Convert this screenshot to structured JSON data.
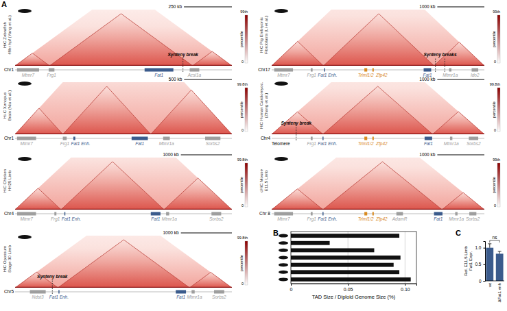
{
  "panel_labels": [
    "A",
    "B",
    "C"
  ],
  "hic_colorbar_unit": "percentile",
  "hic_panels": [
    {
      "title": [
        "HiC Zebrafish",
        "48hr hpf (Yang et al.)"
      ],
      "chrom": "Chr1",
      "kb_range": [
        0,
        1130
      ],
      "scale_kb": 250,
      "scale_label": "250 kb",
      "cbar_max": "99th",
      "cbar_min": 0,
      "tads": [
        [
          0,
          180
        ],
        [
          180,
          925
        ],
        [
          925,
          1130
        ]
      ],
      "genes": [
        {
          "name": "Mtmr7",
          "start": 10,
          "end": 125,
          "color": "#9e9e9e"
        },
        {
          "name": "Frg1",
          "start": 175,
          "end": 205,
          "color": "#9e9e9e"
        },
        {
          "name": "Fat1",
          "start": 675,
          "end": 825,
          "color": "#3b5b8c"
        },
        {
          "name": "Acsl1a",
          "start": 910,
          "end": 960,
          "color": "#9e9e9e"
        }
      ],
      "breaks": [
        875
      ],
      "break_label": "Synteny break"
    },
    {
      "title": [
        "Hi-C Xenopus",
        "Brain (Niu et al.)"
      ],
      "chrom": "Chr1",
      "kb_range": [
        0,
        2270
      ],
      "scale_kb": 500,
      "scale_label": "500 kb",
      "cbar_max": "99.8th",
      "cbar_min": 0,
      "tads": [
        [
          0,
          500
        ],
        [
          500,
          1420
        ],
        [
          1420,
          2270
        ]
      ],
      "genes": [
        {
          "name": "Mtmr7",
          "start": 20,
          "end": 220,
          "color": "#9e9e9e"
        },
        {
          "name": "Frg1",
          "start": 500,
          "end": 540,
          "color": "#9e9e9e"
        },
        {
          "name": "Fat1 Enh.",
          "start": 610,
          "end": 630,
          "color": "#3b5b8c"
        },
        {
          "name": "Fat1",
          "start": 1220,
          "end": 1390,
          "color": "#3b5b8c"
        },
        {
          "name": "Mtmr1a",
          "start": 1550,
          "end": 1620,
          "color": "#9e9e9e"
        },
        {
          "name": "Sorbs2",
          "start": 1990,
          "end": 2150,
          "color": "#9e9e9e"
        }
      ]
    },
    {
      "title": [
        "HiC Chicken",
        "HH25 Limb"
      ],
      "chrom": "Chr4",
      "kb_range": [
        0,
        4250
      ],
      "scale_kb": 1000,
      "scale_label": "1000 kb",
      "cbar_max": "99.8th",
      "cbar_min": 0,
      "tads": [
        [
          0,
          900
        ],
        [
          900,
          2920
        ],
        [
          2920,
          4250
        ]
      ],
      "genes": [
        {
          "name": "Mtmr7",
          "start": 40,
          "end": 410,
          "color": "#9e9e9e"
        },
        {
          "name": "Frg1",
          "start": 770,
          "end": 810,
          "color": "#9e9e9e"
        },
        {
          "name": "Fat1 Enh.",
          "start": 965,
          "end": 985,
          "color": "#3b5b8c"
        },
        {
          "name": "Fat1",
          "start": 2660,
          "end": 2850,
          "color": "#3b5b8c"
        },
        {
          "name": "Mtmr1a",
          "start": 2960,
          "end": 3020,
          "color": "#9e9e9e"
        },
        {
          "name": "Sorbs2",
          "start": 3850,
          "end": 4040,
          "color": "#9e9e9e"
        }
      ]
    },
    {
      "title": [
        "HiC Opossum",
        "Stage 30 Limb"
      ],
      "chrom": "Chr5",
      "kb_range": [
        0,
        4250
      ],
      "scale_kb": 1000,
      "scale_label": "1000 kb",
      "cbar_max": "99.8th",
      "cbar_min": 0,
      "tads": [
        [
          0,
          840
        ],
        [
          840,
          3420
        ],
        [
          3420,
          4250
        ]
      ],
      "genes": [
        {
          "name": "Ndst3",
          "start": 290,
          "end": 600,
          "color": "#9e9e9e"
        },
        {
          "name": "Fat1 Enh.",
          "start": 850,
          "end": 870,
          "color": "#3b5b8c"
        },
        {
          "name": "Fat1",
          "start": 3150,
          "end": 3350,
          "color": "#3b5b8c"
        },
        {
          "name": "Mtmr1a",
          "start": 3460,
          "end": 3520,
          "color": "#9e9e9e"
        },
        {
          "name": "Sorbs2",
          "start": 3900,
          "end": 4100,
          "color": "#9e9e9e"
        }
      ],
      "breaks": [
        730
      ],
      "break_label": "Synteny break"
    },
    {
      "title": [
        "HiC Pig Embryonic",
        "Fibroblasts (Li et al.)"
      ],
      "chrom": "Chr17",
      "kb_range": [
        0,
        4520
      ],
      "scale_kb": 1000,
      "scale_label": "1000 kb",
      "cbar_max": "99th",
      "cbar_min": 0,
      "tads": [
        [
          0,
          1100
        ],
        [
          1100,
          3450
        ],
        [
          3450,
          4520
        ]
      ],
      "genes": [
        {
          "name": "Mtmr7",
          "start": 53,
          "end": 453,
          "color": "#9e9e9e"
        },
        {
          "name": "Frg1",
          "start": 830,
          "end": 870,
          "color": "#9e9e9e"
        },
        {
          "name": "Fat1 Enh.",
          "start": 1110,
          "end": 1130,
          "color": "#3b5b8c"
        },
        {
          "name": "Triml1/2",
          "start": 1970,
          "end": 2030,
          "color": "#d98a1f"
        },
        {
          "name": "Zfp42",
          "start": 2140,
          "end": 2170,
          "color": "#d98a1f"
        },
        {
          "name": "Fat1",
          "start": 3230,
          "end": 3390,
          "color": "#3b5b8c"
        },
        {
          "name": "Mtmr1a",
          "start": 3770,
          "end": 3820,
          "color": "#9e9e9e"
        },
        {
          "name": "Ido2",
          "start": 4250,
          "end": 4390,
          "color": "#9e9e9e"
        }
      ],
      "breaks": [
        3480,
        3680
      ],
      "break_label": "Synteny breaks"
    },
    {
      "title": [
        "HiC Human Cardiomyoc.",
        "(Zhang et al.)"
      ],
      "chrom": "Chr4",
      "kb_range": [
        0,
        4520
      ],
      "scale_kb": 1000,
      "scale_label": "1000 kb",
      "cbar_max": "99.8th",
      "cbar_min": 0,
      "tads": [
        [
          0,
          1090
        ],
        [
          1090,
          3420
        ],
        [
          3420,
          4520
        ]
      ],
      "genes": [
        {
          "name": "Frg1",
          "start": 830,
          "end": 870,
          "color": "#9e9e9e"
        },
        {
          "name": "Fat1 Enh.",
          "start": 1080,
          "end": 1100,
          "color": "#3b5b8c"
        },
        {
          "name": "Triml1/2",
          "start": 1970,
          "end": 2030,
          "color": "#d98a1f"
        },
        {
          "name": "Zfp42",
          "start": 2140,
          "end": 2170,
          "color": "#d98a1f"
        },
        {
          "name": "Fat1",
          "start": 3250,
          "end": 3410,
          "color": "#3b5b8c"
        },
        {
          "name": "Mtmr1a",
          "start": 3790,
          "end": 3840,
          "color": "#9e9e9e"
        },
        {
          "name": "Sorbs2",
          "start": 4190,
          "end": 4390,
          "color": "#9e9e9e"
        }
      ],
      "breaks": [
        520
      ],
      "break_label": "Synteny break",
      "annotations": [
        {
          "text": "Telomere",
          "pos": 0
        }
      ]
    },
    {
      "title": [
        "cHiC Mouse",
        "E11.5 Limb"
      ],
      "chrom": "Chr 8",
      "kb_range": [
        0,
        4520
      ],
      "scale_kb": 1000,
      "scale_label": "1000 kb",
      "cbar_max": "99th",
      "cbar_min": 0,
      "tads": [
        [
          0,
          1090
        ],
        [
          1090,
          3620
        ],
        [
          3620,
          4520
        ]
      ],
      "genes": [
        {
          "name": "Mtmr7",
          "start": 53,
          "end": 453,
          "color": "#9e9e9e"
        },
        {
          "name": "Frg1",
          "start": 830,
          "end": 870,
          "color": "#9e9e9e"
        },
        {
          "name": "Fat1 Enh.",
          "start": 1080,
          "end": 1100,
          "color": "#3b5b8c"
        },
        {
          "name": "Triml1/2",
          "start": 1970,
          "end": 2030,
          "color": "#d98a1f"
        },
        {
          "name": "Zfp42",
          "start": 2140,
          "end": 2170,
          "color": "#d98a1f"
        },
        {
          "name": "AdamR",
          "start": 2650,
          "end": 2790,
          "color": "#9e9e9e"
        },
        {
          "name": "Fat1",
          "start": 3450,
          "end": 3630,
          "color": "#3b5b8c"
        },
        {
          "name": "Mtmr1a",
          "start": 3900,
          "end": 3950,
          "color": "#9e9e9e"
        },
        {
          "name": "Sorbs2",
          "start": 4200,
          "end": 4350,
          "color": "#9e9e9e"
        }
      ]
    }
  ],
  "chart_data": [
    {
      "type": "bar",
      "orientation": "horizontal",
      "categories": [
        null,
        null,
        null,
        null,
        null,
        null,
        null
      ],
      "values": [
        0.095,
        0.034,
        0.073,
        0.096,
        0.09,
        0.095,
        0.105
      ],
      "color": "#111111",
      "xlabel": "TAD Size / Diploid Genome Size (%)",
      "xlim": [
        0,
        0.11
      ],
      "xticks": [
        0,
        0.05,
        {
          "value": 0.1,
          "label": "0.10"
        }
      ],
      "grid": true
    },
    {
      "type": "bar",
      "categories": [
        "wt",
        "ΔFat1 enh"
      ],
      "values": [
        1.0,
        0.82
      ],
      "errors": [
        0.12,
        0.07
      ],
      "color": "#3b5b8c",
      "ylabel": [
        "Rel. E11.5 Limb",
        "Fat1 Expr."
      ],
      "ylim": [
        0,
        1.2
      ],
      "yticks": [
        0,
        0.5,
        {
          "value": 1,
          "label": "1.0"
        }
      ],
      "annotation": "ns"
    }
  ]
}
